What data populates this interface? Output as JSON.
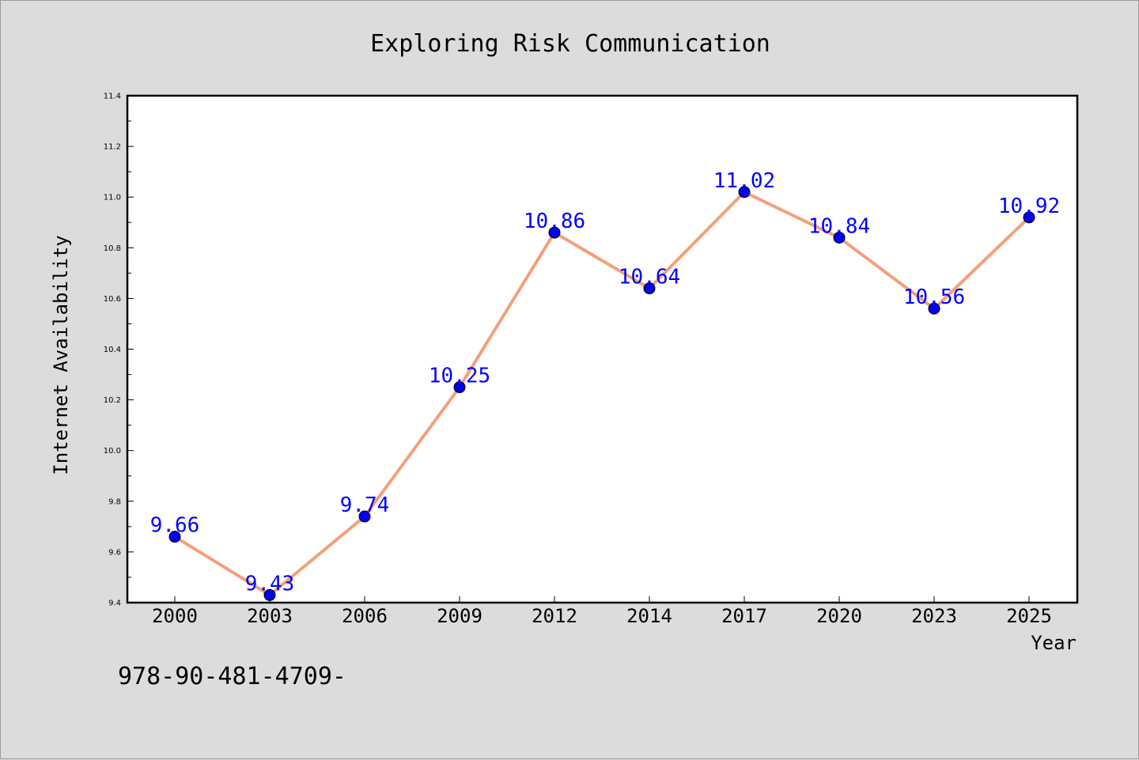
{
  "chart_data": {
    "type": "line",
    "title": "Exploring Risk Communication",
    "xlabel": "Year",
    "ylabel": "Internet Availability",
    "categories": [
      "2000",
      "2003",
      "2006",
      "2009",
      "2012",
      "2014",
      "2017",
      "2020",
      "2023",
      "2025"
    ],
    "values": [
      9.66,
      9.43,
      9.74,
      10.25,
      10.86,
      10.64,
      11.02,
      10.84,
      10.56,
      10.92
    ],
    "data_labels": [
      "9.66",
      "9.43",
      "9.74",
      "10.25",
      "10.86",
      "10.64",
      "11.02",
      "10.84",
      "10.56",
      "10.92"
    ],
    "ylim": [
      9.4,
      11.4
    ],
    "y_ticks": [
      9.4,
      9.6,
      9.8,
      10.0,
      10.2,
      10.4,
      10.6,
      10.8,
      11.0,
      11.2,
      11.4
    ],
    "y_tick_labels": [
      "9.4",
      "9.6",
      "9.8",
      "10.0",
      "10.2",
      "10.4",
      "10.6",
      "10.8",
      "11.0",
      "11.2",
      "11.4"
    ],
    "grid": false,
    "legend": "none",
    "line_color": "#f4a07a",
    "marker_color": "#0000ee",
    "label_color": "#0000ff"
  },
  "footer_text": "978-90-481-4709-"
}
